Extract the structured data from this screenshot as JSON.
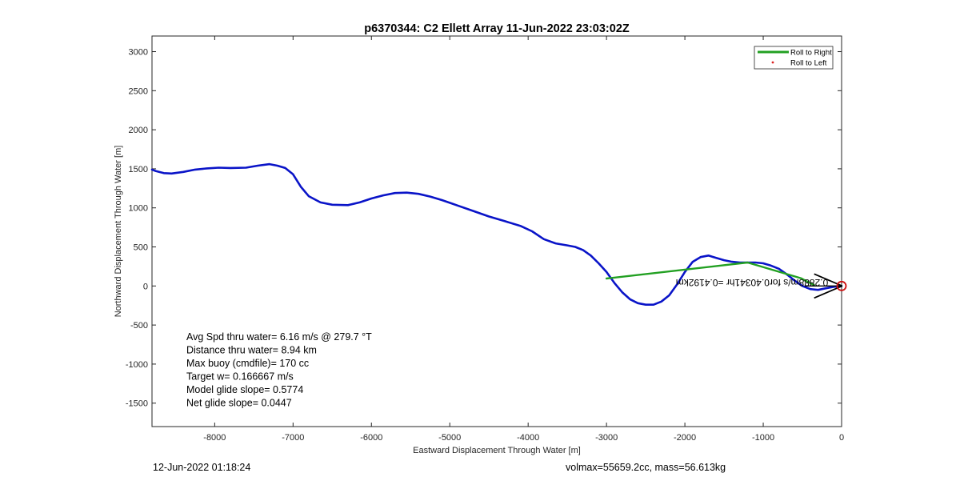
{
  "chart_data": {
    "type": "line",
    "title": "p6370344: C2 Ellett Array 11-Jun-2022 23:03:02Z",
    "xlabel": "Eastward Displacement Through Water [m]",
    "ylabel": "Northward Displacement Through Water [m]",
    "xlim": [
      -8800,
      0
    ],
    "ylim": [
      -1800,
      3200
    ],
    "x_ticks": [
      -8000,
      -7000,
      -6000,
      -5000,
      -4000,
      -3000,
      -2000,
      -1000,
      0
    ],
    "y_ticks": [
      3000,
      2500,
      2000,
      1500,
      1000,
      500,
      0,
      -500,
      -1000,
      -1500
    ],
    "grid": false,
    "legend_position": "top-right",
    "legend": [
      "Roll to Right",
      "Roll to Left"
    ],
    "series": [
      {
        "name": "track",
        "color": "#0a14c8",
        "x": [
          -8800,
          -8750,
          -8650,
          -8550,
          -8400,
          -8250,
          -8100,
          -7950,
          -7800,
          -7600,
          -7450,
          -7300,
          -7200,
          -7100,
          -7000,
          -6900,
          -6800,
          -6650,
          -6500,
          -6300,
          -6150,
          -6000,
          -5850,
          -5700,
          -5550,
          -5400,
          -5250,
          -5100,
          -4900,
          -4700,
          -4500,
          -4300,
          -4100,
          -3950,
          -3800,
          -3650,
          -3500,
          -3400,
          -3300,
          -3200,
          -3100,
          -3000,
          -2900,
          -2800,
          -2700,
          -2600,
          -2500,
          -2400,
          -2300,
          -2200,
          -2100,
          -2000,
          -1900,
          -1800,
          -1700,
          -1600,
          -1500,
          -1400,
          -1300,
          -1200,
          -1100,
          -1000,
          -900,
          -800,
          -700,
          -600,
          -500,
          -400,
          -300,
          -200,
          -100,
          0
        ],
        "y": [
          1490,
          1470,
          1445,
          1440,
          1460,
          1490,
          1505,
          1515,
          1510,
          1515,
          1540,
          1560,
          1540,
          1510,
          1430,
          1270,
          1150,
          1070,
          1040,
          1035,
          1070,
          1120,
          1160,
          1190,
          1195,
          1180,
          1145,
          1100,
          1030,
          960,
          890,
          830,
          770,
          700,
          600,
          545,
          520,
          500,
          460,
          390,
          290,
          180,
          40,
          -80,
          -170,
          -220,
          -240,
          -240,
          -200,
          -120,
          20,
          180,
          310,
          370,
          390,
          360,
          330,
          310,
          300,
          300,
          300,
          290,
          260,
          220,
          150,
          70,
          0,
          -40,
          -50,
          -30,
          -10,
          0
        ]
      },
      {
        "name": "Roll to Right",
        "color": "#22a022",
        "x": [
          -3000,
          -1200,
          -520,
          -350
        ],
        "y": [
          95,
          300,
          100,
          10
        ]
      }
    ],
    "annotations": {
      "stats": [
        "Avg Spd thru water=  6.16 m/s @ 279.7 °T",
        "Distance thru water=  8.94 km",
        "Max buoy (cmdfile)= 170 cc",
        "Target w= 0.166667 m/s",
        "Model glide slope= 0.5774",
        "Net glide slope= 0.0447"
      ],
      "current_vector_label": "0.2888m/s for0.40341hr =0.4192km",
      "marker_circle": {
        "x": 0,
        "y": 0,
        "color": "#cc1111"
      },
      "arrowhead": {
        "x": -350,
        "y": 0
      }
    }
  },
  "footer": {
    "timestamp": "12-Jun-2022 01:18:24",
    "stats": "volmax=55659.2cc, mass=56.613kg"
  }
}
